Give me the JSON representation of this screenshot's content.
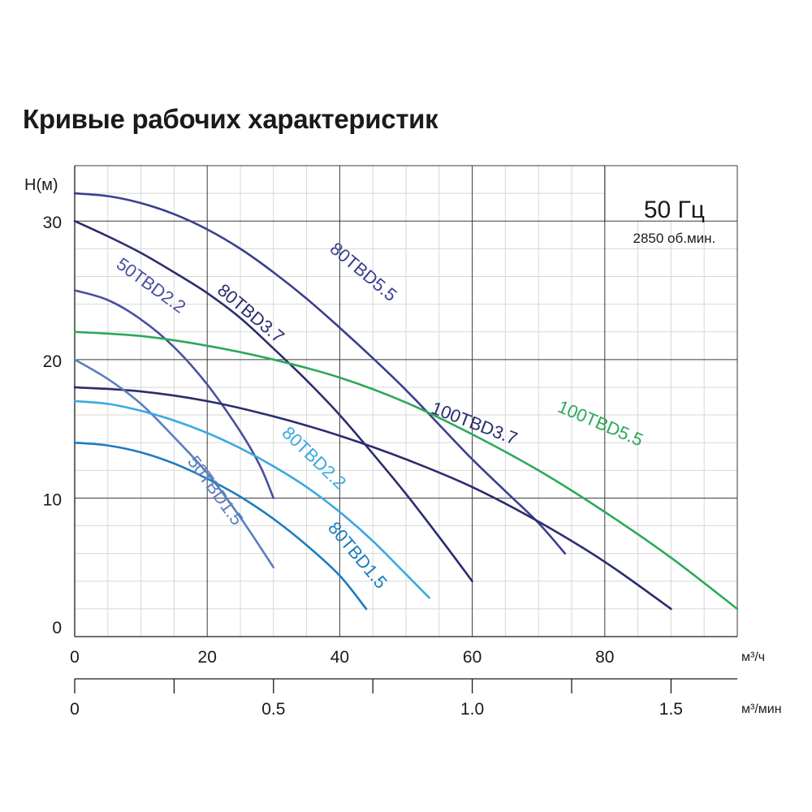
{
  "chart_data": {
    "type": "line",
    "title": "Кривые рабочих характеристик",
    "ylabel": "H(м)",
    "xlabel": "м³/ч",
    "x2label": "м³/мин",
    "xlim": [
      0,
      100
    ],
    "ylim": [
      0,
      34
    ],
    "x2lim": [
      0,
      1.6667
    ],
    "xticks": [
      0,
      20,
      40,
      60,
      80
    ],
    "xtick_labels": [
      "0",
      "20",
      "40",
      "60",
      "80"
    ],
    "yticks": [
      0,
      10,
      20,
      30
    ],
    "ytick_labels": [
      "0",
      "10",
      "20",
      "30"
    ],
    "x2ticks": [
      0,
      0.25,
      0.5,
      0.75,
      1.0,
      1.25,
      1.5
    ],
    "x2tick_labels": [
      "0",
      "",
      "0.5",
      "",
      "1.0",
      "",
      "1.5"
    ],
    "grid": true,
    "legend": "none (inline curve labels)",
    "annotation": {
      "frequency": "50 Гц",
      "speed": "2850 об.мин."
    },
    "series": [
      {
        "name": "80TBD5.5",
        "color": "#3a3f8f",
        "x": [
          0,
          5,
          10,
          15,
          20,
          25,
          30,
          35,
          40,
          45,
          50,
          55,
          60,
          65,
          70,
          74
        ],
        "y": [
          32,
          31.8,
          31.3,
          30.5,
          29.4,
          28,
          26.3,
          24.4,
          22.3,
          20.1,
          17.8,
          15.3,
          12.8,
          10.5,
          8.2,
          6
        ]
      },
      {
        "name": "80TBD3.7",
        "color": "#2b2d6e",
        "x": [
          0,
          5,
          10,
          15,
          20,
          25,
          30,
          35,
          40,
          45,
          50,
          55,
          60
        ],
        "y": [
          30,
          28.9,
          27.7,
          26.3,
          24.8,
          23,
          20.8,
          18.5,
          16,
          13.2,
          10.3,
          7.2,
          4
        ]
      },
      {
        "name": "50TBD2.2",
        "color": "#4a4f9e",
        "x": [
          0,
          5,
          10,
          15,
          20,
          25,
          28,
          30
        ],
        "y": [
          25,
          24.3,
          22.9,
          20.9,
          18.2,
          14.8,
          12.3,
          10
        ]
      },
      {
        "name": "100TBD5.5",
        "color": "#2ea85a",
        "x": [
          0,
          10,
          20,
          30,
          40,
          50,
          60,
          70,
          80,
          90,
          100
        ],
        "y": [
          22,
          21.7,
          21,
          20,
          18.7,
          16.9,
          14.6,
          12,
          9,
          5.7,
          2
        ]
      },
      {
        "name": "100TBD3.7",
        "color": "#2b2d6e",
        "x": [
          0,
          10,
          20,
          30,
          40,
          50,
          60,
          70,
          80,
          90
        ],
        "y": [
          18,
          17.7,
          17,
          15.9,
          14.5,
          12.8,
          10.8,
          8.3,
          5.4,
          2
        ]
      },
      {
        "name": "50TBD1.5",
        "color": "#5b7ec0",
        "x": [
          0,
          5,
          10,
          15,
          20,
          25,
          30
        ],
        "y": [
          20,
          18.6,
          16.8,
          14.4,
          11.8,
          8.6,
          5
        ]
      },
      {
        "name": "80TBD2.2",
        "color": "#3aa8e0",
        "x": [
          0,
          5,
          10,
          15,
          20,
          25,
          30,
          35,
          40,
          45,
          50,
          53.5
        ],
        "y": [
          17,
          16.8,
          16.3,
          15.6,
          14.7,
          13.6,
          12.3,
          10.8,
          9,
          6.9,
          4.5,
          2.8
        ]
      },
      {
        "name": "80TBD1.5",
        "color": "#1b7cc0",
        "x": [
          0,
          5,
          10,
          15,
          20,
          25,
          30,
          35,
          40,
          44
        ],
        "y": [
          14,
          13.8,
          13.3,
          12.5,
          11.4,
          10.1,
          8.5,
          6.6,
          4.4,
          2
        ]
      }
    ],
    "curve_labels": [
      {
        "series": "80TBD5.5",
        "x": 43,
        "y": 26,
        "angle": 40
      },
      {
        "series": "80TBD3.7",
        "x": 26,
        "y": 23,
        "angle": 40
      },
      {
        "series": "50TBD2.2",
        "x": 11,
        "y": 25,
        "angle": 36
      },
      {
        "series": "100TBD5.5",
        "x": 79,
        "y": 15,
        "angle": 23
      },
      {
        "series": "100TBD3.7",
        "x": 60,
        "y": 15,
        "angle": 21
      },
      {
        "series": "50TBD1.5",
        "x": 20.5,
        "y": 10.3,
        "angle": 54
      },
      {
        "series": "80TBD2.2",
        "x": 35.5,
        "y": 12.6,
        "angle": 44
      },
      {
        "series": "80TBD1.5",
        "x": 42,
        "y": 5.6,
        "angle": 50
      }
    ]
  }
}
